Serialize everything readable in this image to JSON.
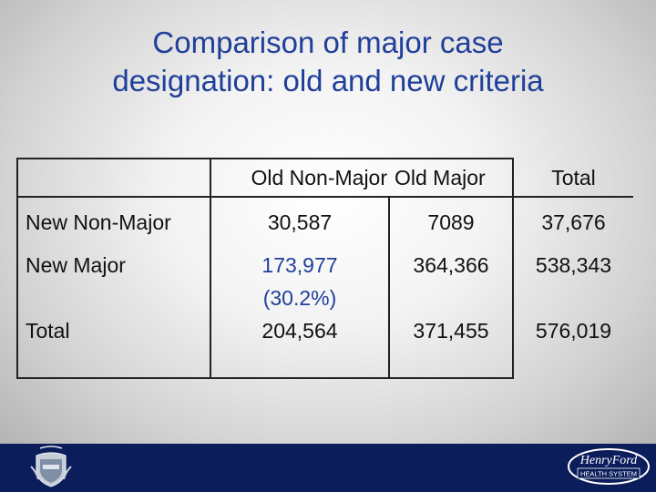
{
  "slide": {
    "title_line1": "Comparison of major case",
    "title_line2": "designation: old and new criteria"
  },
  "table": {
    "col_headers": [
      "Old Non-Major",
      "Old Major",
      "Total"
    ],
    "rows": [
      {
        "label": "New Non-Major",
        "cells": [
          "30,587",
          "7089",
          "37,676"
        ]
      },
      {
        "label": "New Major",
        "cells": [
          "173,977",
          "364,366",
          "538,343"
        ],
        "note": "(30.2%)"
      },
      {
        "label": "Total",
        "cells": [
          "204,564",
          "371,455",
          "576,019"
        ]
      }
    ]
  },
  "logo": {
    "name": "Henry Ford Health System",
    "line1": "HenryFord",
    "line2": "HEALTH SYSTEM"
  },
  "colors": {
    "title": "#1f3f9a",
    "highlight": "#1f3f9a",
    "footer": "#0b1d5a"
  },
  "icons": [
    "crest-icon",
    "hfhs-logo-icon"
  ]
}
